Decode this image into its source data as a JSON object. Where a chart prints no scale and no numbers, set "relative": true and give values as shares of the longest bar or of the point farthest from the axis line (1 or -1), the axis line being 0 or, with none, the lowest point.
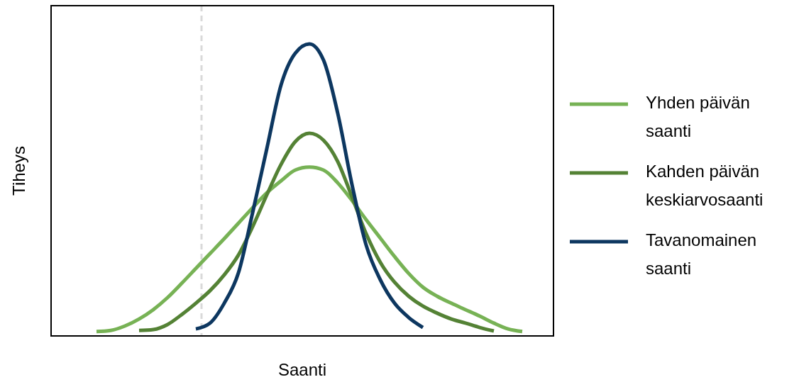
{
  "chart_data": {
    "type": "line",
    "relative": true,
    "xlabel": "Saanti",
    "ylabel": "Tiheys",
    "legend": "right",
    "line_style": "solid",
    "categories": [
      null,
      null,
      null,
      null,
      null,
      null,
      null,
      null,
      null,
      null,
      null,
      null,
      null,
      null,
      null,
      null,
      null,
      null,
      null,
      null,
      null,
      null,
      null,
      null,
      null,
      null,
      null,
      null,
      null,
      null,
      null,
      null
    ],
    "series": [
      {
        "name": "Yhden päivän saanti",
        "color": "#77b255",
        "values": [
          null,
          0.015,
          0.019,
          0.034,
          0.058,
          0.09,
          0.131,
          0.18,
          0.231,
          0.282,
          0.333,
          0.386,
          0.439,
          0.49,
          0.531,
          0.568,
          0.578,
          0.568,
          0.524,
          0.464,
          0.398,
          0.335,
          0.272,
          0.214,
          0.167,
          0.136,
          0.112,
          0.09,
          0.068,
          0.044,
          0.024,
          0.015
        ]
      },
      {
        "name": "Kahden päivän keskiarvosaanti",
        "color": "#548235",
        "values": [
          null,
          null,
          null,
          null,
          0.019,
          0.022,
          0.039,
          0.073,
          0.112,
          0.155,
          0.209,
          0.277,
          0.374,
          0.483,
          0.587,
          0.665,
          0.694,
          0.67,
          0.597,
          0.476,
          0.35,
          0.252,
          0.184,
          0.136,
          0.102,
          0.078,
          0.058,
          0.044,
          0.029,
          0.017,
          null,
          null
        ]
      },
      {
        "name": "Tavanomainen saanti",
        "color": "#0d3760",
        "values": [
          null,
          null,
          null,
          null,
          null,
          null,
          null,
          null,
          0.024,
          0.044,
          0.112,
          0.216,
          0.422,
          0.641,
          0.859,
          0.968,
          1,
          0.944,
          0.762,
          0.519,
          0.311,
          0.192,
          0.112,
          0.063,
          0.029,
          null,
          null,
          null,
          null,
          null,
          null,
          null
        ]
      }
    ]
  }
}
